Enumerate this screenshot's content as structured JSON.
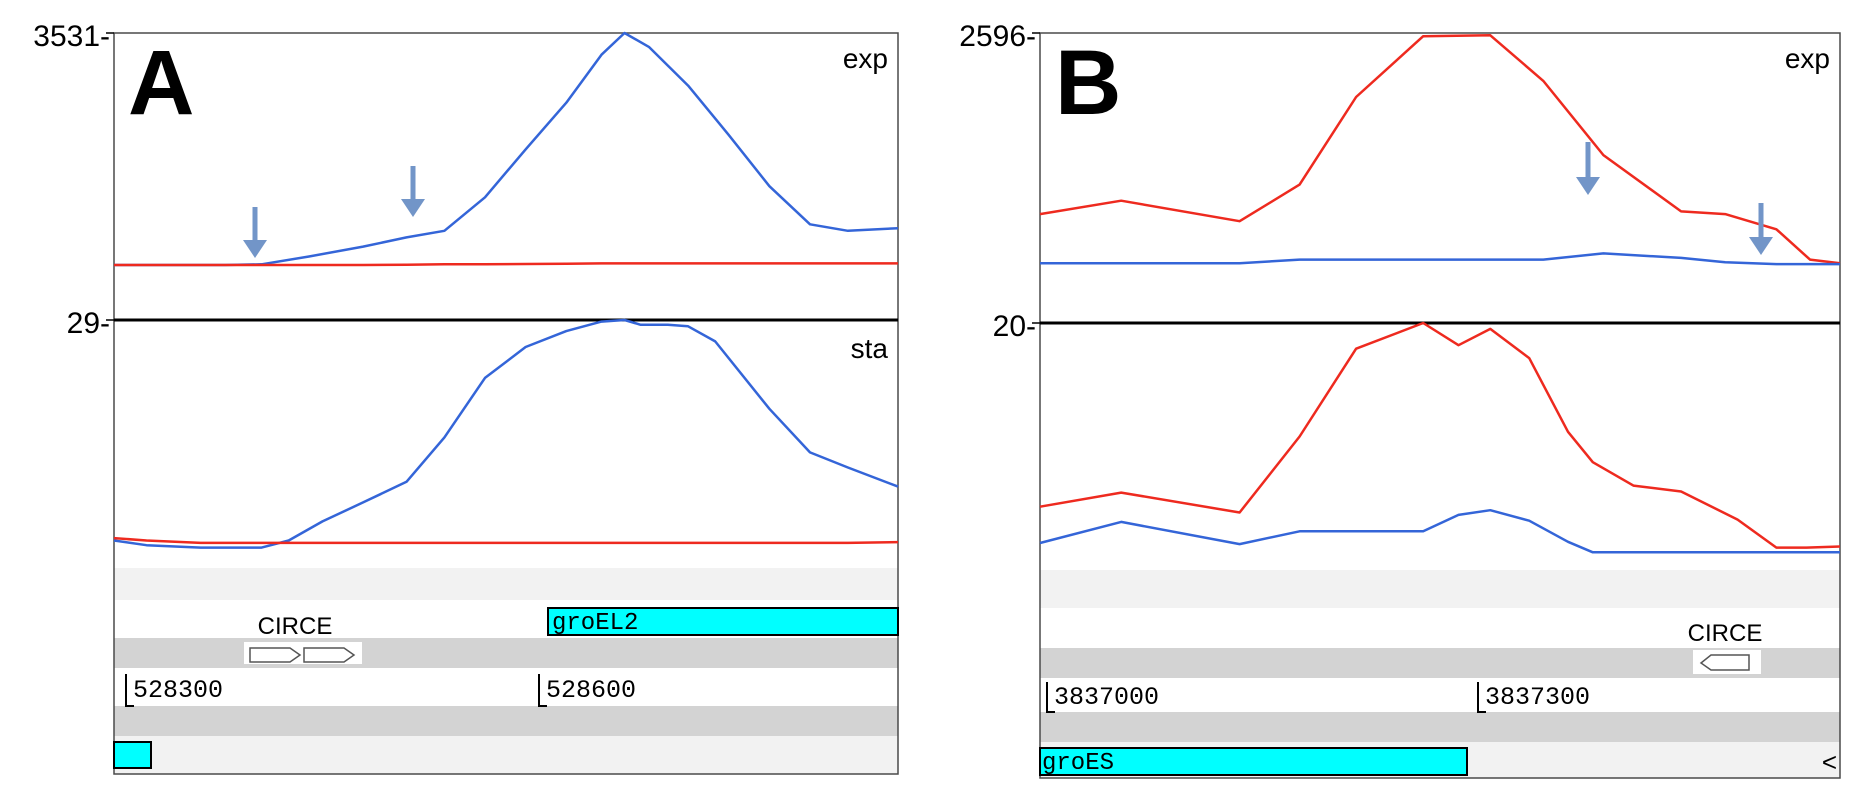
{
  "figure": {
    "panels": [
      {
        "label": "A",
        "tracks": [
          {
            "ymax_label": "3531-",
            "name": "exp"
          },
          {
            "ymax_label": "29-",
            "name": "sta"
          }
        ],
        "annotation": {
          "circe_label": "CIRCE",
          "gene_label": "groEL2",
          "coords": [
            "528300",
            "528600"
          ]
        }
      },
      {
        "label": "B",
        "tracks": [
          {
            "ymax_label": "2596-",
            "name": "exp"
          },
          {
            "ymax_label": "20-",
            "name": ""
          }
        ],
        "annotation": {
          "circe_label": "CIRCE",
          "gene_label": "groES",
          "coords": [
            "3837000",
            "3837300"
          ],
          "edge_mark": "<"
        }
      }
    ]
  },
  "chart_data": [
    {
      "type": "line",
      "panel": "A",
      "track": "exp",
      "ylim": [
        0,
        3531
      ],
      "x": [
        528176,
        528220,
        528258,
        528285,
        528320,
        528360,
        528392,
        528420,
        528450,
        528480,
        528510,
        528536,
        528553,
        528571,
        528600,
        528630,
        528660,
        528690,
        528718,
        528755
      ],
      "series": [
        {
          "color": "#3465d8",
          "values": [
            0,
            0,
            0,
            10,
            130,
            280,
            420,
            520,
            1030,
            1760,
            2470,
            3200,
            3531,
            3320,
            2730,
            1980,
            1200,
            620,
            520,
            560
          ]
        },
        {
          "color": "#ee2a1f",
          "values": [
            0,
            0,
            0,
            0,
            0,
            0,
            5,
            10,
            10,
            15,
            20,
            25,
            25,
            25,
            25,
            25,
            25,
            25,
            25,
            25
          ]
        }
      ],
      "arrows_x": [
        528285,
        528392
      ]
    },
    {
      "type": "line",
      "panel": "A",
      "track": "sta",
      "ylim": [
        0,
        29
      ],
      "x": [
        528176,
        528200,
        528240,
        528285,
        528305,
        528330,
        528360,
        528392,
        528420,
        528450,
        528480,
        528510,
        528536,
        528553,
        528565,
        528585,
        528600,
        528620,
        528660,
        528690,
        528718,
        528755
      ],
      "series": [
        {
          "color": "#3465d8",
          "values": [
            1.2,
            0.6,
            0.3,
            0.3,
            1.2,
            3.6,
            6,
            8.6,
            14.2,
            21.7,
            25.6,
            27.6,
            28.8,
            29,
            28.4,
            28.4,
            28.2,
            26.3,
            17.8,
            12.3,
            10.4,
            8
          ]
        },
        {
          "color": "#ee2a1f",
          "values": [
            1.5,
            1.2,
            0.9,
            0.9,
            0.9,
            0.9,
            0.9,
            0.9,
            0.9,
            0.9,
            0.9,
            0.9,
            0.9,
            0.9,
            0.9,
            0.9,
            0.9,
            0.9,
            0.9,
            0.9,
            0.9,
            1.0
          ]
        }
      ]
    },
    {
      "type": "line",
      "panel": "B",
      "track": "exp",
      "ylim": [
        0,
        2596
      ],
      "x": [
        3836997,
        3837043,
        3837110,
        3837144,
        3837176,
        3837214,
        3837252,
        3837282,
        3837316,
        3837360,
        3837385,
        3837414,
        3837433,
        3837450
      ],
      "series": [
        {
          "color": "#ee2a1f",
          "values": [
            570,
            720,
            490,
            900,
            1880,
            2560,
            2570,
            2060,
            1230,
            600,
            570,
            400,
            60,
            20
          ]
        },
        {
          "color": "#3465d8",
          "values": [
            20,
            20,
            20,
            60,
            60,
            60,
            60,
            60,
            130,
            80,
            30,
            10,
            10,
            10
          ]
        }
      ],
      "arrows_x": [
        3837327,
        3837431
      ]
    },
    {
      "type": "line",
      "panel": "B",
      "track": "lower",
      "ylim": [
        0,
        20
      ],
      "x": [
        3836997,
        3837043,
        3837110,
        3837144,
        3837176,
        3837214,
        3837234,
        3837252,
        3837274,
        3837296,
        3837310,
        3837333,
        3837360,
        3837392,
        3837414,
        3837431,
        3837450
      ],
      "series": [
        {
          "color": "#ee2a1f",
          "values": [
            4.3,
            5.5,
            3.8,
            10.3,
            17.8,
            20,
            18.1,
            19.5,
            17,
            10.7,
            8.1,
            6.1,
            5.6,
            3.2,
            0.8,
            0.8,
            0.9
          ]
        },
        {
          "color": "#3465d8",
          "values": [
            1.2,
            3,
            1.1,
            2.2,
            2.2,
            2.2,
            3.6,
            4,
            3.1,
            1.3,
            0.4,
            0.4,
            0.4,
            0.4,
            0.4,
            0.4,
            0.4
          ]
        }
      ]
    }
  ]
}
